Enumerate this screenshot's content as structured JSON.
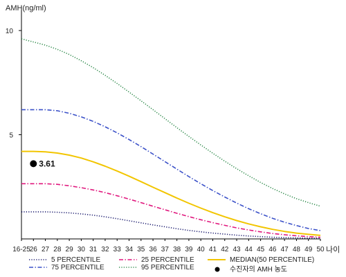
{
  "chart_data": {
    "type": "line",
    "title": "",
    "ylabel": "AMH(ng/ml)",
    "xlabel": "나이",
    "ylim": [
      0,
      11
    ],
    "y_ticks": [
      {
        "value": 5,
        "label": "5"
      },
      {
        "value": 10,
        "label": "10"
      }
    ],
    "x_ticks": [
      "16-25",
      "26",
      "27",
      "28",
      "29",
      "30",
      "31",
      "32",
      "33",
      "34",
      "35",
      "36",
      "37",
      "38",
      "39",
      "40",
      "41",
      "42",
      "43",
      "44",
      "45",
      "46",
      "47",
      "48",
      "49",
      "50"
    ],
    "grid": false,
    "legend_position": "bottom",
    "series": [
      {
        "name": "5 PERCENTILE",
        "color": "#1a1a6e",
        "dash": "dotted",
        "values": [
          1.3,
          1.3,
          1.3,
          1.28,
          1.25,
          1.2,
          1.14,
          1.06,
          0.97,
          0.87,
          0.77,
          0.67,
          0.58,
          0.49,
          0.41,
          0.34,
          0.28,
          0.23,
          0.18,
          0.14,
          0.11,
          0.08,
          0.06,
          0.05,
          0.04,
          0.03
        ]
      },
      {
        "name": "25 PERCENTILE",
        "color": "#e0177d",
        "dash": "dashdot",
        "values": [
          2.65,
          2.65,
          2.65,
          2.62,
          2.55,
          2.46,
          2.35,
          2.22,
          2.07,
          1.91,
          1.74,
          1.57,
          1.4,
          1.23,
          1.07,
          0.92,
          0.78,
          0.65,
          0.53,
          0.43,
          0.34,
          0.26,
          0.2,
          0.15,
          0.11,
          0.08
        ]
      },
      {
        "name": "MEDIAN(50 PERCENTILE)",
        "color": "#f2c500",
        "dash": "solid",
        "values": [
          4.2,
          4.2,
          4.18,
          4.12,
          4.02,
          3.88,
          3.7,
          3.49,
          3.26,
          3.01,
          2.75,
          2.48,
          2.22,
          1.96,
          1.71,
          1.48,
          1.26,
          1.06,
          0.88,
          0.72,
          0.58,
          0.46,
          0.36,
          0.28,
          0.22,
          0.17
        ]
      },
      {
        "name": "75 PERCENTILE",
        "color": "#3a50c8",
        "dash": "dashdot",
        "values": [
          6.2,
          6.2,
          6.2,
          6.15,
          6.03,
          5.86,
          5.64,
          5.38,
          5.09,
          4.77,
          4.43,
          4.07,
          3.71,
          3.35,
          2.99,
          2.65,
          2.32,
          2.01,
          1.72,
          1.45,
          1.21,
          0.99,
          0.8,
          0.64,
          0.5,
          0.4
        ]
      },
      {
        "name": "95 PERCENTILE",
        "color": "#2e8a4a",
        "dash": "dotted",
        "values": [
          9.6,
          9.45,
          9.3,
          9.1,
          8.85,
          8.55,
          8.22,
          7.85,
          7.46,
          7.05,
          6.63,
          6.2,
          5.77,
          5.34,
          4.92,
          4.51,
          4.11,
          3.73,
          3.37,
          3.03,
          2.71,
          2.42,
          2.16,
          1.93,
          1.74,
          1.57
        ]
      }
    ],
    "highlight_point": {
      "x": "26",
      "value": 3.61,
      "label": "3.61",
      "legend_label": "수진자의 AMH 농도",
      "color": "#000000"
    }
  }
}
